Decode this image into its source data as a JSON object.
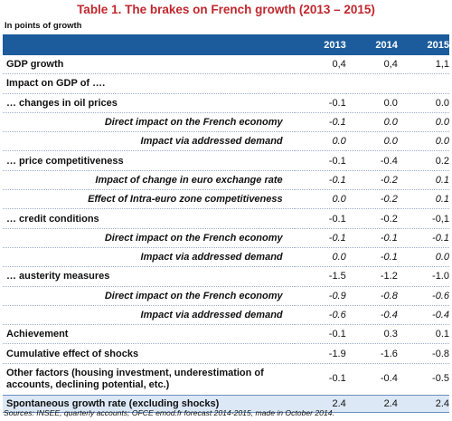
{
  "title": "Table 1. The brakes on French growth (2013 – 2015)",
  "subtitle": "In points of growth",
  "table": {
    "columns": [
      "2013",
      "2014",
      "2015"
    ],
    "rows": [
      {
        "label": "GDP growth",
        "values": [
          "0,4",
          "0,4",
          "1,1"
        ]
      },
      {
        "label": "Impact on GDP of …."
      },
      {
        "label": "… changes in oil prices",
        "values": [
          "-0.1",
          "0.0",
          "0.0"
        ],
        "details": [
          {
            "label": "Direct impact on the French economy",
            "values": [
              "-0.1",
              "0.0",
              "0.0"
            ]
          },
          {
            "label": "Impact via addressed demand",
            "values": [
              "0.0",
              "0.0",
              "0.0"
            ]
          }
        ]
      },
      {
        "label": "… price competitiveness",
        "values": [
          "-0.1",
          "-0.4",
          "0.2"
        ],
        "details": [
          {
            "label": "Impact of change in euro exchange rate",
            "values": [
              "-0.1",
              "-0.2",
              "0.1"
            ]
          },
          {
            "label": "Effect of Intra-euro zone competitiveness",
            "values": [
              "0.0",
              "-0.2",
              "0.1"
            ]
          }
        ]
      },
      {
        "label": "… credit conditions",
        "values": [
          "-0.1",
          "-0.2",
          "-0,1"
        ],
        "details": [
          {
            "label": "Direct impact on the French economy",
            "values": [
              "-0.1",
              "-0.1",
              "-0.1"
            ]
          },
          {
            "label": "Impact via addressed demand",
            "values": [
              "0.0",
              "-0.1",
              "0.0"
            ]
          }
        ]
      },
      {
        "label": "… austerity measures",
        "values": [
          "-1.5",
          "-1.2",
          "-1.0"
        ],
        "details": [
          {
            "label": "Direct impact on the French economy",
            "values": [
              "-0.9",
              "-0.8",
              "-0.6"
            ]
          },
          {
            "label": "Impact via addressed demand",
            "values": [
              "-0.6",
              "-0.4",
              "-0.4"
            ]
          }
        ]
      },
      {
        "label": "Achievement",
        "values": [
          "-0.1",
          "0.3",
          "0.1"
        ]
      },
      {
        "label": "Cumulative effect of shocks",
        "values": [
          "-1.9",
          "-1.6",
          "-0.8"
        ]
      },
      {
        "label": "Other factors (housing investment, underestimation of accounts, declining potential, etc.)",
        "values": [
          "-0.1",
          "-0.4",
          "-0.5"
        ]
      }
    ],
    "total": {
      "label": "Spontaneous growth rate (excluding shocks)",
      "values": [
        "2.4",
        "2.4",
        "2.4"
      ]
    }
  },
  "source": "Sources: INSEE, quarterly accounts; OFCE emod.fr forecast 2014-2015, made in October 2014."
}
